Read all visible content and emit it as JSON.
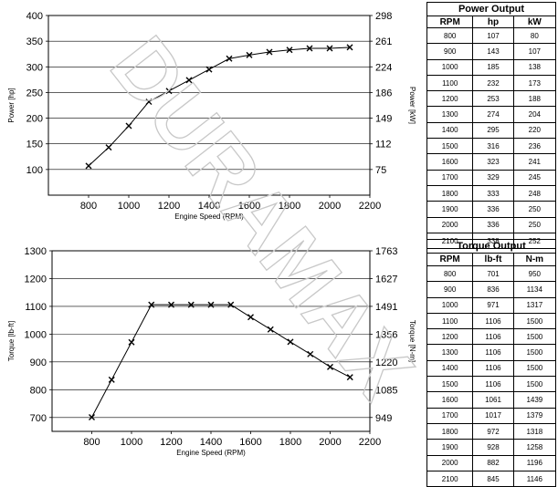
{
  "chart_data": [
    {
      "type": "line",
      "title": "",
      "xlabel": "Engine Speed (RPM)",
      "ylabel": "Power [hp]",
      "y2label": "Power [kW]",
      "xlim": [
        600,
        2200
      ],
      "ylim": [
        50,
        400
      ],
      "x_ticks": [
        "800",
        "1000",
        "1200",
        "1400",
        "1600",
        "1800",
        "2000",
        "2200"
      ],
      "y_ticks": [
        "100",
        "150",
        "200",
        "250",
        "300",
        "350",
        "400"
      ],
      "y2_ticks": [
        "75",
        "112",
        "149",
        "186",
        "224",
        "261",
        "298"
      ],
      "grid": "horizontal",
      "marker": "x",
      "x": [
        800,
        900,
        1000,
        1100,
        1200,
        1300,
        1400,
        1500,
        1600,
        1700,
        1800,
        1900,
        2000,
        2100
      ],
      "series": [
        {
          "values": [
            107,
            143,
            185,
            232,
            253,
            274,
            295,
            316,
            323,
            329,
            333,
            336,
            336,
            338
          ]
        }
      ]
    },
    {
      "type": "line",
      "title": "",
      "xlabel": "Engine Speed (RPM)",
      "ylabel": "Torque [lb-ft]",
      "y2label": "Torque [N-m]",
      "xlim": [
        600,
        2200
      ],
      "ylim": [
        650,
        1300
      ],
      "x_ticks": [
        "800",
        "1000",
        "1200",
        "1400",
        "1600",
        "1800",
        "2000",
        "2200"
      ],
      "y_ticks": [
        "700",
        "800",
        "900",
        "1000",
        "1100",
        "1200",
        "1300"
      ],
      "y2_ticks": [
        "949",
        "1085",
        "1220",
        "1356",
        "1491",
        "1627",
        "1763"
      ],
      "grid": "horizontal",
      "marker": "x",
      "x": [
        800,
        900,
        1000,
        1100,
        1200,
        1300,
        1400,
        1500,
        1600,
        1700,
        1800,
        1900,
        2000,
        2100
      ],
      "series": [
        {
          "values": [
            701,
            836,
            971,
            1106,
            1106,
            1106,
            1106,
            1106,
            1061,
            1017,
            972,
            928,
            882,
            845
          ]
        }
      ]
    }
  ],
  "power_table": {
    "title": "Power Output",
    "headers": [
      "RPM",
      "hp",
      "kW"
    ],
    "rows": [
      [
        "800",
        "107",
        "80"
      ],
      [
        "900",
        "143",
        "107"
      ],
      [
        "1000",
        "185",
        "138"
      ],
      [
        "1100",
        "232",
        "173"
      ],
      [
        "1200",
        "253",
        "188"
      ],
      [
        "1300",
        "274",
        "204"
      ],
      [
        "1400",
        "295",
        "220"
      ],
      [
        "1500",
        "316",
        "236"
      ],
      [
        "1600",
        "323",
        "241"
      ],
      [
        "1700",
        "329",
        "245"
      ],
      [
        "1800",
        "333",
        "248"
      ],
      [
        "1900",
        "336",
        "250"
      ],
      [
        "2000",
        "336",
        "250"
      ],
      [
        "2100",
        "338",
        "252"
      ]
    ]
  },
  "torque_table": {
    "title": "Torque Output",
    "headers": [
      "RPM",
      "lb-ft",
      "N-m"
    ],
    "rows": [
      [
        "800",
        "701",
        "950"
      ],
      [
        "900",
        "836",
        "1134"
      ],
      [
        "1000",
        "971",
        "1317"
      ],
      [
        "1100",
        "1106",
        "1500"
      ],
      [
        "1200",
        "1106",
        "1500"
      ],
      [
        "1300",
        "1106",
        "1500"
      ],
      [
        "1400",
        "1106",
        "1500"
      ],
      [
        "1500",
        "1106",
        "1500"
      ],
      [
        "1600",
        "1061",
        "1439"
      ],
      [
        "1700",
        "1017",
        "1379"
      ],
      [
        "1800",
        "972",
        "1318"
      ],
      [
        "1900",
        "928",
        "1258"
      ],
      [
        "2000",
        "882",
        "1196"
      ],
      [
        "2100",
        "845",
        "1146"
      ]
    ]
  },
  "watermark": {
    "text": "DURAMAX"
  },
  "colors": {
    "line": "#000000",
    "grid": "#000000",
    "text": "#000000",
    "background": "#ffffff"
  }
}
